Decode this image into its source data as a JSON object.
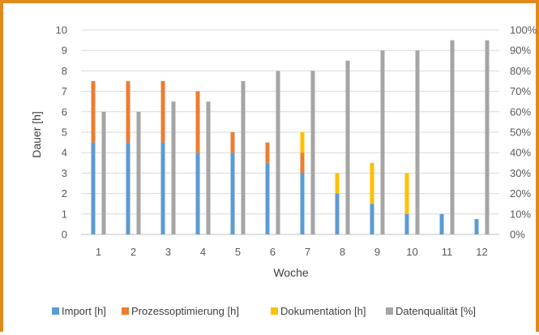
{
  "chart_data": {
    "type": "bar",
    "stacked": true,
    "xlabel": "Woche",
    "ylabel": "Dauer [h]",
    "ylim": [
      0,
      10
    ],
    "y2lim": [
      0,
      100
    ],
    "yticks": [
      "0",
      "1",
      "2",
      "3",
      "4",
      "5",
      "6",
      "7",
      "8",
      "9",
      "10"
    ],
    "y2ticks": [
      "0%",
      "10%",
      "20%",
      "30%",
      "40%",
      "50%",
      "60%",
      "70%",
      "80%",
      "90%",
      "100%"
    ],
    "categories": [
      "1",
      "2",
      "3",
      "4",
      "5",
      "6",
      "7",
      "8",
      "9",
      "10",
      "11",
      "12"
    ],
    "grid": true,
    "legend_position": "bottom",
    "series": [
      {
        "name": "Import [h]",
        "axis": "left",
        "stack": "hours",
        "color": "#5b9bd5",
        "values": [
          4.5,
          4.5,
          4.5,
          4,
          4,
          3.5,
          3,
          2,
          1.5,
          1,
          1,
          0.75
        ]
      },
      {
        "name": "Prozessoptimierung [h]",
        "axis": "left",
        "stack": "hours",
        "color": "#ed7d31",
        "values": [
          3,
          3,
          3,
          3,
          1,
          1,
          1,
          0,
          0,
          0,
          0,
          0
        ]
      },
      {
        "name": "Dokumentation [h]",
        "axis": "left",
        "stack": "hours",
        "color": "#ffc000",
        "values": [
          0,
          0,
          0,
          0,
          0,
          0,
          1,
          1,
          2,
          2,
          0,
          0
        ]
      },
      {
        "name": "Datenqualität [%]",
        "axis": "right",
        "stack": "quality",
        "color": "#a5a5a5",
        "values": [
          60,
          60,
          65,
          65,
          75,
          80,
          80,
          85,
          90,
          90,
          95,
          95
        ]
      }
    ]
  }
}
